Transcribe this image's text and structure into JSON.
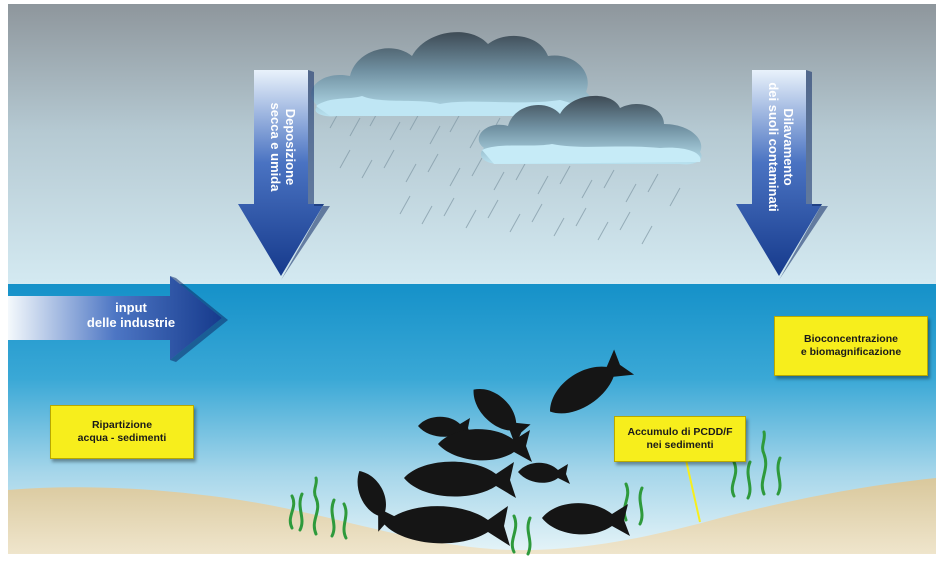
{
  "labels": {
    "deposizione": [
      "Deposizione",
      "secca e umida"
    ],
    "dilavamento": [
      "Dilavamento",
      "dei suoli contaminati"
    ],
    "input": [
      "input",
      "delle industrie"
    ],
    "bioconcentrazione": [
      "Bioconcentrazione",
      "e biomagnificazione"
    ],
    "ripartizione": [
      "Ripartizione",
      "acqua - sedimenti"
    ],
    "accumulo": [
      "Accumulo di PCDD/F",
      "nei sedimenti"
    ]
  },
  "colors": {
    "sky_top": "#8e969c",
    "sky_bottom": "#cfe8f2",
    "water_top": "#1591c9",
    "water_bottom": "#cdeaf3",
    "sand": "#e4d6b2",
    "arrow_dark": "#1b3f8f",
    "arrow_light": "#ffffff",
    "label_fill": "#f7ee1c",
    "seaweed": "#2e9a3c",
    "fish": "#151515"
  }
}
